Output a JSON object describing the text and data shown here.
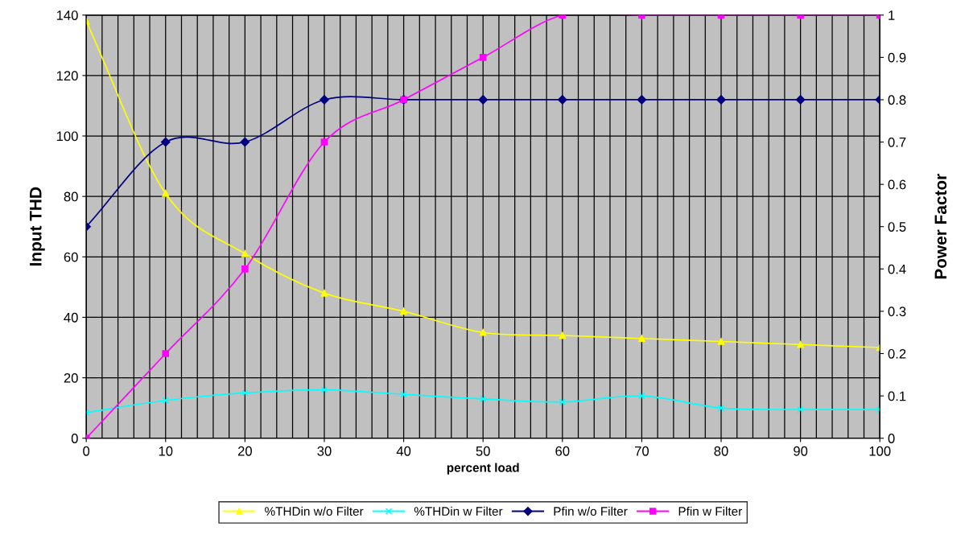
{
  "chart_data": {
    "type": "line",
    "xlabel": "percent load",
    "ylabel": "Input THD",
    "y2label": "Power Factor",
    "x": [
      0,
      10,
      20,
      30,
      40,
      50,
      60,
      70,
      80,
      90,
      100
    ],
    "series": [
      {
        "name": "%THDin w/o Filter",
        "color": "#ffff00",
        "marker": "triangle",
        "values": [
          138,
          81,
          61,
          48,
          42,
          35,
          34,
          33,
          32,
          31,
          30
        ]
      },
      {
        "name": "%THDin w Filter",
        "color": "#00ffff",
        "marker": "cross",
        "values": [
          8.5,
          12.5,
          15,
          16,
          14.5,
          13,
          12,
          14,
          10,
          9.5,
          9.5
        ]
      },
      {
        "name": "Pfin w/o Filter",
        "color": "#000080",
        "marker": "diamond",
        "axis": "y2",
        "values": [
          0.5,
          0.7,
          0.7,
          0.8,
          0.8,
          0.8,
          0.8,
          0.8,
          0.8,
          0.8,
          0.8
        ]
      },
      {
        "name": "Pfin w Filter",
        "color": "#ff00ff",
        "marker": "square",
        "axis": "y2",
        "values": [
          0,
          0.2,
          0.4,
          0.7,
          0.8,
          0.9,
          1,
          1,
          1,
          1,
          1
        ]
      }
    ],
    "xlim": [
      0,
      100
    ],
    "xticks": [
      0,
      10,
      20,
      30,
      40,
      50,
      60,
      70,
      80,
      90,
      100
    ],
    "ylim": [
      0,
      140
    ],
    "yticks": [
      0,
      20,
      40,
      60,
      80,
      100,
      120,
      140
    ],
    "y2lim": [
      0,
      1
    ],
    "y2ticks": [
      0,
      0.1,
      0.2,
      0.3,
      0.4,
      0.5,
      0.6,
      0.7,
      0.8,
      0.9,
      1
    ],
    "grid": true,
    "legend": "bottom",
    "line_style": "solid"
  }
}
